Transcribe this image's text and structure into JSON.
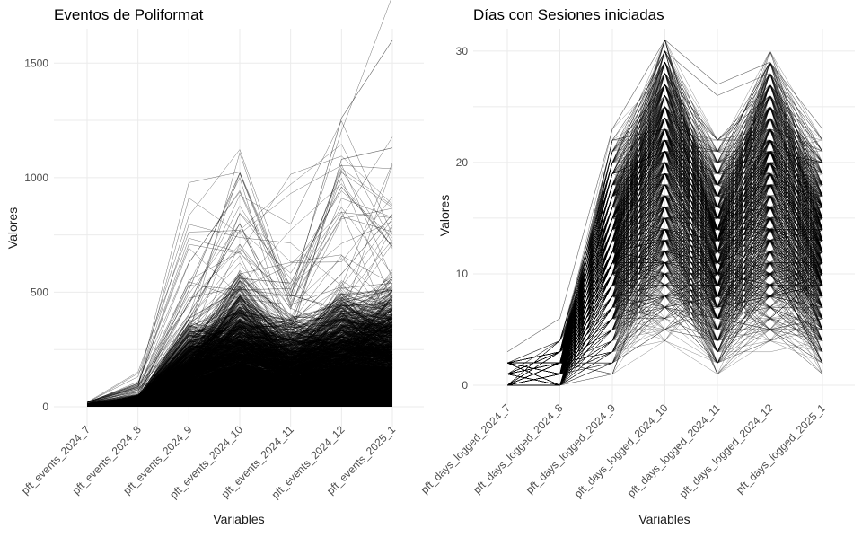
{
  "chart_data": [
    {
      "type": "line",
      "title": "Eventos de Poliformat",
      "xlabel": "Variables",
      "ylabel": "Valores",
      "categories": [
        "pft_events_2024_7",
        "pft_events_2024_8",
        "pft_events_2024_9",
        "pft_events_2024_10",
        "pft_events_2024_11",
        "pft_events_2024_12",
        "pft_events_2025_1"
      ],
      "ylim": [
        0,
        1650
      ],
      "yticks": [
        0,
        500,
        1000,
        1500
      ],
      "grid": true,
      "legend": "none",
      "series_count": 1200,
      "series_style": "parallel-coordinates, thin black lines",
      "series": [
        {
          "values": [
            8,
            25,
            160,
            260,
            170,
            240,
            280
          ]
        },
        {
          "values": [
            12,
            40,
            510,
            1020,
            480,
            1260,
            1600
          ]
        },
        {
          "values": [
            5,
            30,
            380,
            800,
            300,
            1080,
            1130
          ]
        },
        {
          "values": [
            10,
            20,
            250,
            560,
            540,
            960,
            700
          ]
        },
        {
          "values": [
            6,
            35,
            300,
            420,
            360,
            580,
            840
          ]
        }
      ]
    },
    {
      "type": "line",
      "title": "Días con Sesiones iniciadas",
      "xlabel": "Variables",
      "ylabel": "Valores",
      "categories": [
        "pft_days_logged_2024_7",
        "pft_days_logged_2024_8",
        "pft_days_logged_2024_9",
        "pft_days_logged_2024_10",
        "pft_days_logged_2024_11",
        "pft_days_logged_2024_12",
        "pft_days_logged_2025_1"
      ],
      "ylim": [
        0,
        32
      ],
      "yticks": [
        0,
        10,
        20,
        30
      ],
      "grid": true,
      "legend": "none",
      "series_count": 1200,
      "series_style": "parallel-coordinates, thin black lines",
      "series": [
        {
          "values": [
            3,
            6,
            23,
            31,
            27,
            29,
            23
          ]
        },
        {
          "values": [
            2,
            4,
            20,
            30,
            26,
            28,
            22
          ]
        },
        {
          "values": [
            1,
            3,
            18,
            28,
            22,
            26,
            20
          ]
        },
        {
          "values": [
            0,
            2,
            16,
            27,
            18,
            25,
            18
          ]
        }
      ]
    }
  ]
}
